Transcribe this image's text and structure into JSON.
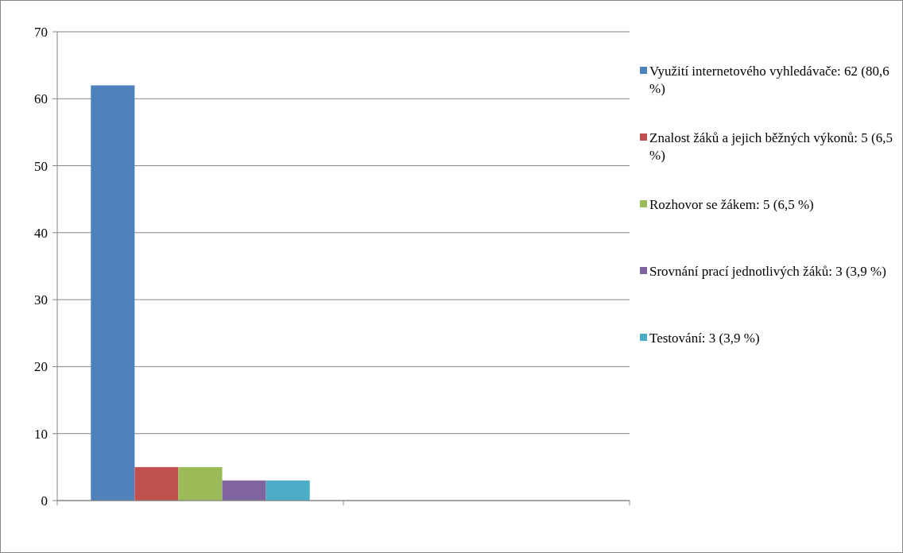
{
  "chart_data": {
    "type": "bar",
    "categories": [
      null,
      null
    ],
    "series": [
      {
        "name": "Využití internetového vyhledávače: 62 (80,6 %)",
        "color": "#4f81bd",
        "values": [
          62,
          null
        ]
      },
      {
        "name": "Znalost žáků a jejich běžných výkonů: 5 (6,5 %)",
        "color": "#c0504d",
        "values": [
          5,
          null
        ]
      },
      {
        "name": "Rozhovor se žákem: 5 (6,5 %)",
        "color": "#9bbb59",
        "values": [
          5,
          null
        ]
      },
      {
        "name": "Srovnání prací jednotlivých žáků: 3 (3,9 %)",
        "color": "#8064a2",
        "values": [
          3,
          null
        ]
      },
      {
        "name": "Testování: 3 (3,9 %)",
        "color": "#4bacc6",
        "values": [
          3,
          null
        ]
      }
    ],
    "ylim": [
      0,
      70
    ],
    "yticks": [
      0,
      10,
      20,
      30,
      40,
      50,
      60,
      70
    ],
    "grid": "y",
    "legend": "right",
    "tick_labels": "y"
  }
}
